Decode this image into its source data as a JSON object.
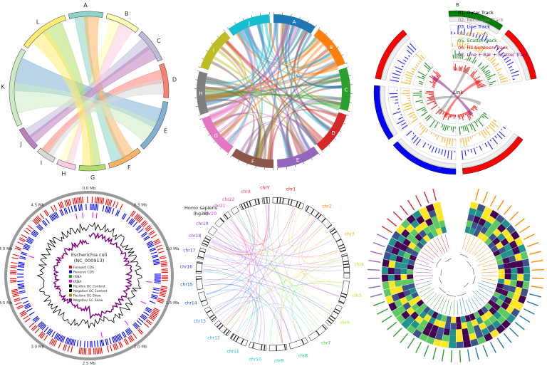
{
  "panels": {
    "p1": {
      "sectors": [
        "A",
        "B",
        "C",
        "D",
        "E",
        "F",
        "G",
        "H",
        "I",
        "J",
        "K",
        "L"
      ],
      "colors": [
        "#8dd3c7",
        "#ffffb3",
        "#bebada",
        "#fb8072",
        "#80b1d3",
        "#fdb462",
        "#b3de69",
        "#fccde5",
        "#d9d9d9",
        "#bc80bd",
        "#ccebc5",
        "#ffed6f"
      ]
    },
    "p2": {
      "sectors": [
        "A",
        "B",
        "C",
        "D",
        "E",
        "F",
        "G",
        "H",
        "I",
        "J"
      ],
      "colors": [
        "#1f77b4",
        "#ff7f0e",
        "#2ca02c",
        "#d62728",
        "#9467bd",
        "#8c564b",
        "#e377c2",
        "#7f7f7f",
        "#bcbd22",
        "#17becf"
      ]
    },
    "p3": {
      "sector_top": "B",
      "link_label": "Link",
      "legend": [
        {
          "text": "01. Outer Track",
          "color": "#000000"
        },
        {
          "text": "02. Rectangle Track",
          "color": "#808080"
        },
        {
          "text": "03. Line Track",
          "color": "#0000ff"
        },
        {
          "text": "04. Bar Track",
          "color": "#ffa500"
        },
        {
          "text": "05. Scatter Track",
          "color": "#008000"
        },
        {
          "text": "06. Fill between Track",
          "color": "#ff0000"
        },
        {
          "text": "07. Line + Bar + Scatter Track",
          "color": "#800080"
        }
      ]
    },
    "p4": {
      "title_1": "Escherichia coli",
      "title_2": "(NC_000913)",
      "ticks": [
        "0.0 Mb",
        "0.5 Mb",
        "1.0 Mb",
        "1.5 Mb",
        "2.0 Mb",
        "2.5 Mb",
        "3.0 Mb",
        "3.5 Mb",
        "4.0 Mb",
        "4.5 Mb"
      ],
      "legend": [
        {
          "text": "Forward CDS",
          "color": "#ff0000"
        },
        {
          "text": "Reverse CDS",
          "color": "#0000ff"
        },
        {
          "text": "rRNA",
          "color": "#00aa00"
        },
        {
          "text": "tRNA",
          "color": "#ff00ff"
        },
        {
          "text": "Positive GC Content",
          "color": "#000000"
        },
        {
          "text": "Negative GC Content",
          "color": "#000000"
        },
        {
          "text": "Positive GC Skew",
          "color": "#999900"
        },
        {
          "text": "Negative GC Skew",
          "color": "#800080"
        }
      ]
    },
    "p5": {
      "title_1": "Homo sapiens",
      "title_2": "(hg38)",
      "chromosomes": [
        "chr1",
        "chr2",
        "chr3",
        "chr4",
        "chr5",
        "chr6",
        "chr7",
        "chr8",
        "chr9",
        "chr10",
        "chr11",
        "chr12",
        "chr13",
        "chr14",
        "chr15",
        "chr16",
        "chr17",
        "chr18",
        "chr19",
        "chr20",
        "chr21",
        "chr22",
        "chrX",
        "chrY"
      ],
      "chr_colors": [
        "#ff0000",
        "#ff7f00",
        "#e6b800",
        "#cccc00",
        "#b3e600",
        "#80ff00",
        "#33cc33",
        "#00cc66",
        "#00cc99",
        "#00cccc",
        "#00b3e6",
        "#33aaff",
        "#3377ff",
        "#0055ff",
        "#1144cc",
        "#3333ff",
        "#6633ff",
        "#8833ff",
        "#aa33ff",
        "#cc33ff",
        "#ff33cc",
        "#ff3399",
        "#ff3366",
        "#ff0033"
      ]
    },
    "p6": {}
  }
}
